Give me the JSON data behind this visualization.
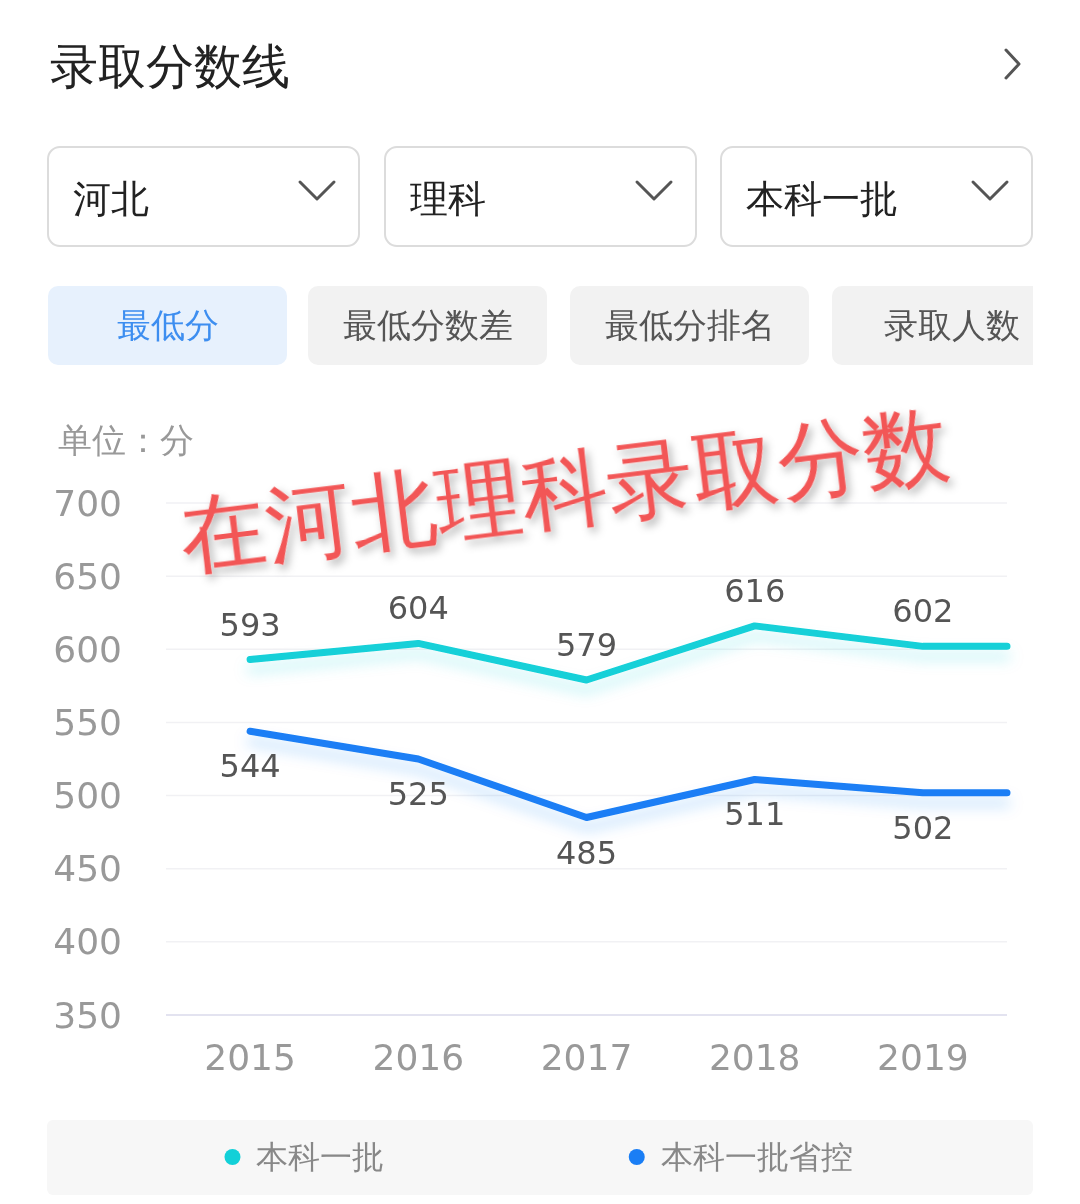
{
  "chart_data": {
    "type": "line",
    "title": "录取分数线",
    "ylabel": "单位：分",
    "annotations": [
      "河北",
      "理科",
      "本科一批",
      "最低分",
      "最低分数差",
      "最低分排名",
      "录取人数",
      "在河北理科录取分数"
    ],
    "x": [
      2015,
      2016,
      2017,
      2018,
      2019,
      2019.5
    ],
    "xlim": [
      2014.5,
      2019.5
    ],
    "xticks": [
      2015,
      2016,
      2017,
      2018,
      2019
    ],
    "ylim": [
      350,
      700
    ],
    "yticks": [
      350,
      400,
      450,
      500,
      550,
      600,
      650,
      700
    ],
    "series": [
      {
        "name": "本科一批",
        "color": "#12d0d8",
        "values": [
          593,
          604,
          579,
          616,
          602,
          602
        ],
        "value_labels": [
          "593",
          "604",
          "579",
          "616",
          "602",
          null
        ]
      },
      {
        "name": "本科一批省控",
        "color": "#1a7ef5",
        "values": [
          544,
          525,
          485,
          511,
          502,
          502
        ],
        "value_labels": [
          "544",
          "525",
          "485",
          "511",
          "502",
          null
        ]
      }
    ],
    "grid": "y",
    "legend": "bottom"
  }
}
